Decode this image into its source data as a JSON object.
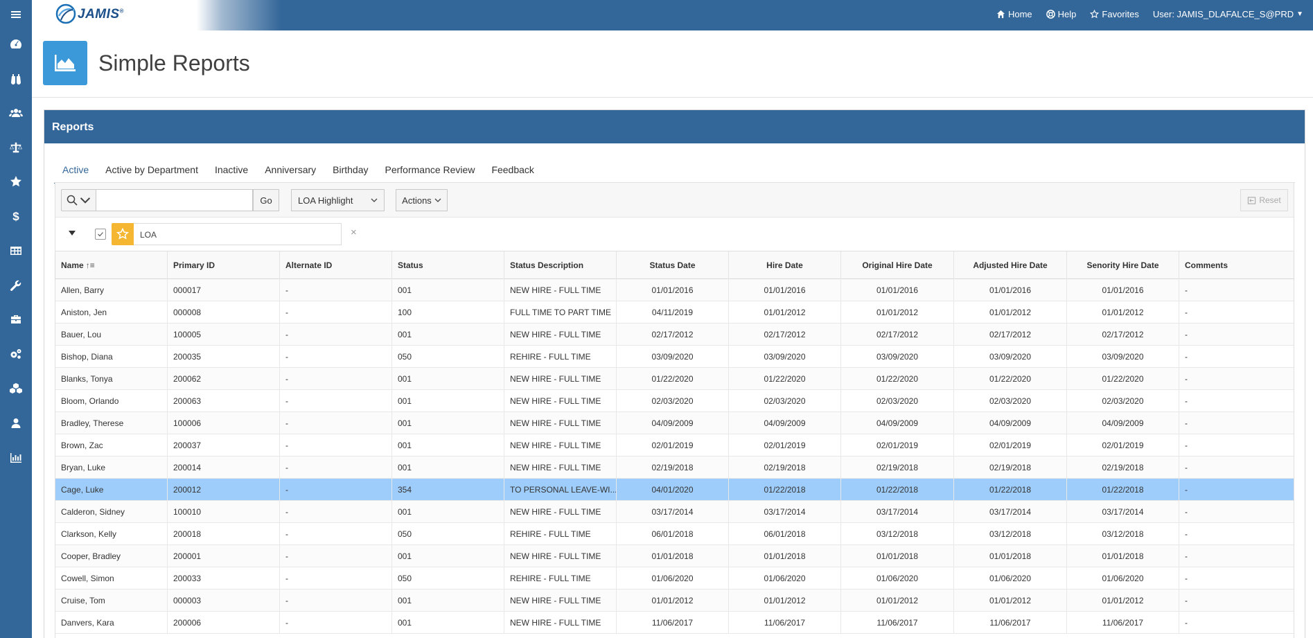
{
  "app": {
    "logo_text": "JAMIS",
    "logo_registered": "®"
  },
  "header": {
    "links": [
      {
        "label": "Home",
        "icon": "home-icon"
      },
      {
        "label": "Help",
        "icon": "help-icon"
      },
      {
        "label": "Favorites",
        "icon": "star-icon"
      }
    ],
    "user_label": "User: JAMIS_DLAFALCE_S@PRD"
  },
  "sidebar": {
    "items": [
      {
        "icon": "menu-icon"
      },
      {
        "icon": "dashboard-icon"
      },
      {
        "icon": "binoculars-icon"
      },
      {
        "icon": "users-icon"
      },
      {
        "icon": "balance-scale-icon"
      },
      {
        "icon": "star-icon"
      },
      {
        "icon": "dollar-icon"
      },
      {
        "icon": "table-icon"
      },
      {
        "icon": "wrench-icon"
      },
      {
        "icon": "briefcase-icon"
      },
      {
        "icon": "gears-icon"
      },
      {
        "icon": "cubes-icon"
      },
      {
        "icon": "user-icon"
      },
      {
        "icon": "bar-chart-icon"
      }
    ]
  },
  "page": {
    "title": "Simple Reports",
    "icon": "area-chart-icon"
  },
  "region": {
    "title": "Reports",
    "tabs": [
      "Active",
      "Active by Department",
      "Inactive",
      "Anniversary",
      "Birthday",
      "Performance Review",
      "Feedback"
    ],
    "active_tab": "Active"
  },
  "toolbar": {
    "search_value": "",
    "go_label": "Go",
    "report_select": "LOA Highlight",
    "actions_label": "Actions",
    "reset_label": "Reset"
  },
  "filter": {
    "name": "LOA",
    "highlight_color": "#f5b731",
    "remove_glyph": "×"
  },
  "grid": {
    "columns": [
      "Name",
      "Primary ID",
      "Alternate ID",
      "Status",
      "Status Description",
      "Status Date",
      "Hire Date",
      "Original Hire Date",
      "Adjusted Hire Date",
      "Senority Hire Date",
      "Comments"
    ],
    "sort_indicator": "↑≡",
    "selected_row_color": "#9fcdfb",
    "rows": [
      [
        "Allen, Barry",
        "000017",
        "-",
        "001",
        "NEW HIRE - FULL TIME",
        "01/01/2016",
        "01/01/2016",
        "01/01/2016",
        "01/01/2016",
        "01/01/2016",
        "-"
      ],
      [
        "Aniston, Jen",
        "000008",
        "-",
        "100",
        "FULL TIME TO PART TIME",
        "04/11/2019",
        "01/01/2012",
        "01/01/2012",
        "01/01/2012",
        "01/01/2012",
        "-"
      ],
      [
        "Bauer, Lou",
        "100005",
        "-",
        "001",
        "NEW HIRE - FULL TIME",
        "02/17/2012",
        "02/17/2012",
        "02/17/2012",
        "02/17/2012",
        "02/17/2012",
        "-"
      ],
      [
        "Bishop, Diana",
        "200035",
        "-",
        "050",
        "REHIRE - FULL TIME",
        "03/09/2020",
        "03/09/2020",
        "03/09/2020",
        "03/09/2020",
        "03/09/2020",
        "-"
      ],
      [
        "Blanks, Tonya",
        "200062",
        "-",
        "001",
        "NEW HIRE - FULL TIME",
        "01/22/2020",
        "01/22/2020",
        "01/22/2020",
        "01/22/2020",
        "01/22/2020",
        "-"
      ],
      [
        "Bloom, Orlando",
        "200063",
        "-",
        "001",
        "NEW HIRE - FULL TIME",
        "02/03/2020",
        "02/03/2020",
        "02/03/2020",
        "02/03/2020",
        "02/03/2020",
        "-"
      ],
      [
        "Bradley, Therese",
        "100006",
        "-",
        "001",
        "NEW HIRE - FULL TIME",
        "04/09/2009",
        "04/09/2009",
        "04/09/2009",
        "04/09/2009",
        "04/09/2009",
        "-"
      ],
      [
        "Brown, Zac",
        "200037",
        "-",
        "001",
        "NEW HIRE - FULL TIME",
        "02/01/2019",
        "02/01/2019",
        "02/01/2019",
        "02/01/2019",
        "02/01/2019",
        "-"
      ],
      [
        "Bryan, Luke",
        "200014",
        "-",
        "001",
        "NEW HIRE - FULL TIME",
        "02/19/2018",
        "02/19/2018",
        "02/19/2018",
        "02/19/2018",
        "02/19/2018",
        "-"
      ],
      [
        "Cage, Luke",
        "200012",
        "-",
        "354",
        "TO PERSONAL LEAVE-WI...",
        "04/01/2020",
        "01/22/2018",
        "01/22/2018",
        "01/22/2018",
        "01/22/2018",
        "-"
      ],
      [
        "Calderon, Sidney",
        "100010",
        "-",
        "001",
        "NEW HIRE - FULL TIME",
        "03/17/2014",
        "03/17/2014",
        "03/17/2014",
        "03/17/2014",
        "03/17/2014",
        "-"
      ],
      [
        "Clarkson, Kelly",
        "200018",
        "-",
        "050",
        "REHIRE - FULL TIME",
        "06/01/2018",
        "06/01/2018",
        "03/12/2018",
        "03/12/2018",
        "03/12/2018",
        "-"
      ],
      [
        "Cooper, Bradley",
        "200001",
        "-",
        "001",
        "NEW HIRE - FULL TIME",
        "01/01/2018",
        "01/01/2018",
        "01/01/2018",
        "01/01/2018",
        "01/01/2018",
        "-"
      ],
      [
        "Cowell, Simon",
        "200033",
        "-",
        "050",
        "REHIRE - FULL TIME",
        "01/06/2020",
        "01/06/2020",
        "01/06/2020",
        "01/06/2020",
        "01/06/2020",
        "-"
      ],
      [
        "Cruise, Tom",
        "000003",
        "-",
        "001",
        "NEW HIRE - FULL TIME",
        "01/01/2012",
        "01/01/2012",
        "01/01/2012",
        "01/01/2012",
        "01/01/2012",
        "-"
      ],
      [
        "Danvers, Kara",
        "200006",
        "-",
        "001",
        "NEW HIRE - FULL TIME",
        "11/06/2017",
        "11/06/2017",
        "11/06/2017",
        "11/06/2017",
        "11/06/2017",
        "-"
      ]
    ],
    "selected_row_index": 9
  }
}
